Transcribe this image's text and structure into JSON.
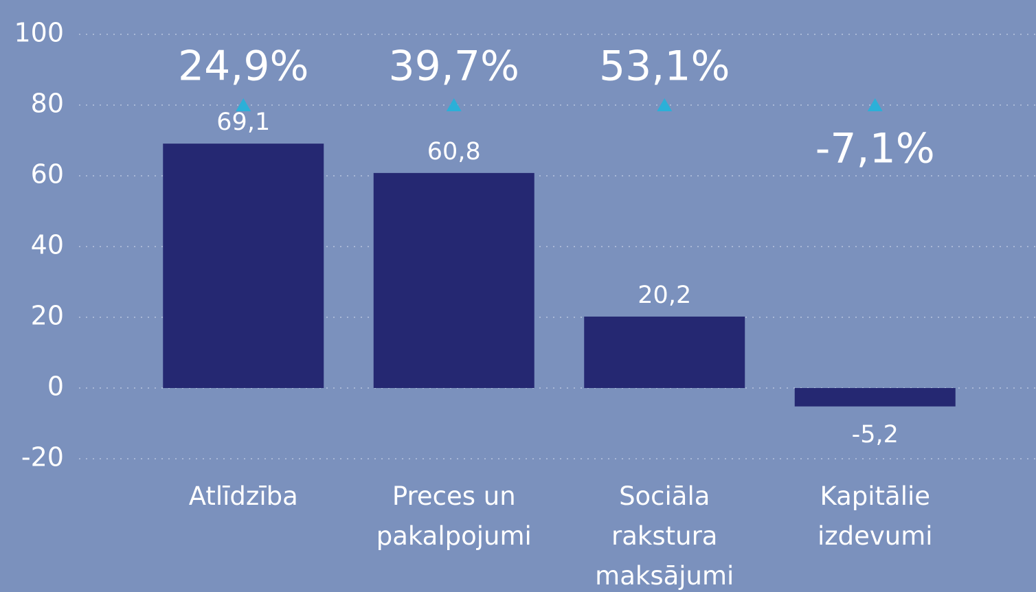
{
  "chart_data": {
    "type": "bar",
    "categories": [
      "Atlīdzība",
      "Preces un pakalpojumi",
      "Sociāla rakstura maksājumi",
      "Kapitālie izdevumi"
    ],
    "values": [
      69.1,
      60.8,
      20.2,
      -5.2
    ],
    "value_labels": [
      "69,1",
      "60,8",
      "20,2",
      "-5,2"
    ],
    "color": "#252872",
    "change": {
      "values": [
        24.9,
        39.7,
        53.1,
        -7.1
      ],
      "value_labels": [
        "24,9%",
        "39,7%",
        "53,1%",
        "-7,1%"
      ],
      "color": "#2bb0d8"
    },
    "ylim": [
      -20,
      100
    ],
    "yticks": [
      -20,
      0,
      20,
      40,
      60,
      80,
      100
    ],
    "grid": true
  }
}
